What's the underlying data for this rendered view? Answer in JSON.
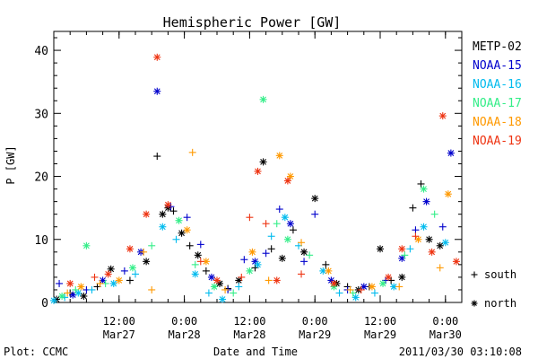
{
  "chart_data": {
    "type": "scatter",
    "title": "Hemispheric Power [GW]",
    "ylabel": "P [GW]",
    "xlabel": "Date and Time",
    "ylim": [
      0,
      43
    ],
    "yticks": [
      0,
      10,
      20,
      30,
      40
    ],
    "xlim": [
      "2011-03-27 00:00",
      "2011-03-30 03:00"
    ],
    "xticks": [
      {
        "t": "2011-03-27 12:00",
        "time": "12:00",
        "date": "Mar27"
      },
      {
        "t": "2011-03-28 00:00",
        "time": "0:00",
        "date": "Mar28"
      },
      {
        "t": "2011-03-28 12:00",
        "time": "12:00",
        "date": "Mar28"
      },
      {
        "t": "2011-03-29 00:00",
        "time": "0:00",
        "date": "Mar29"
      },
      {
        "t": "2011-03-29 12:00",
        "time": "12:00",
        "date": "Mar29"
      },
      {
        "t": "2011-03-30 00:00",
        "time": "0:00",
        "date": "Mar30"
      }
    ],
    "marker_legend": [
      {
        "symbol": "+",
        "label": "south"
      },
      {
        "symbol": "*",
        "label": "north"
      }
    ],
    "series": [
      {
        "name": "METP-02",
        "color": "#000000",
        "points": [
          {
            "t": "2011-03-27 00:30",
            "y": 0.5,
            "m": "*"
          },
          {
            "t": "2011-03-27 03:00",
            "y": 1.5,
            "m": "+"
          },
          {
            "t": "2011-03-27 05:30",
            "y": 1.0,
            "m": "*"
          },
          {
            "t": "2011-03-27 08:00",
            "y": 2.5,
            "m": "+"
          },
          {
            "t": "2011-03-27 10:30",
            "y": 5.3,
            "m": "*"
          },
          {
            "t": "2011-03-27 14:00",
            "y": 3.5,
            "m": "+"
          },
          {
            "t": "2011-03-27 17:00",
            "y": 6.5,
            "m": "*"
          },
          {
            "t": "2011-03-27 19:00",
            "y": 23.2,
            "m": "+"
          },
          {
            "t": "2011-03-27 20:00",
            "y": 14.0,
            "m": "*"
          },
          {
            "t": "2011-03-27 21:00",
            "y": 15.0,
            "m": "*"
          },
          {
            "t": "2011-03-27 22:00",
            "y": 14.5,
            "m": "+"
          },
          {
            "t": "2011-03-27 23:30",
            "y": 11.0,
            "m": "*"
          },
          {
            "t": "2011-03-28 01:00",
            "y": 9.0,
            "m": "+"
          },
          {
            "t": "2011-03-28 02:30",
            "y": 7.5,
            "m": "*"
          },
          {
            "t": "2011-03-28 04:00",
            "y": 5.0,
            "m": "+"
          },
          {
            "t": "2011-03-28 06:30",
            "y": 3.0,
            "m": "*"
          },
          {
            "t": "2011-03-28 08:00",
            "y": 2.2,
            "m": "+"
          },
          {
            "t": "2011-03-28 10:00",
            "y": 3.5,
            "m": "*"
          },
          {
            "t": "2011-03-28 13:00",
            "y": 5.5,
            "m": "+"
          },
          {
            "t": "2011-03-28 14:30",
            "y": 22.3,
            "m": "*"
          },
          {
            "t": "2011-03-28 16:00",
            "y": 8.5,
            "m": "+"
          },
          {
            "t": "2011-03-28 18:00",
            "y": 7.0,
            "m": "*"
          },
          {
            "t": "2011-03-28 20:00",
            "y": 11.5,
            "m": "+"
          },
          {
            "t": "2011-03-28 22:00",
            "y": 8.0,
            "m": "*"
          },
          {
            "t": "2011-03-29 00:00",
            "y": 16.5,
            "m": "*"
          },
          {
            "t": "2011-03-29 02:00",
            "y": 6.0,
            "m": "+"
          },
          {
            "t": "2011-03-29 04:00",
            "y": 3.0,
            "m": "*"
          },
          {
            "t": "2011-03-29 06:00",
            "y": 2.5,
            "m": "+"
          },
          {
            "t": "2011-03-29 08:00",
            "y": 2.0,
            "m": "*"
          },
          {
            "t": "2011-03-29 10:00",
            "y": 2.5,
            "m": "+"
          },
          {
            "t": "2011-03-29 12:00",
            "y": 8.5,
            "m": "*"
          },
          {
            "t": "2011-03-29 14:00",
            "y": 3.5,
            "m": "+"
          },
          {
            "t": "2011-03-29 16:00",
            "y": 4.0,
            "m": "*"
          },
          {
            "t": "2011-03-29 18:00",
            "y": 15.0,
            "m": "+"
          },
          {
            "t": "2011-03-29 19:30",
            "y": 18.8,
            "m": "+"
          },
          {
            "t": "2011-03-29 21:00",
            "y": 10.0,
            "m": "*"
          },
          {
            "t": "2011-03-29 23:00",
            "y": 9.0,
            "m": "*"
          }
        ]
      },
      {
        "name": "NOAA-15",
        "color": "#0000cc",
        "points": [
          {
            "t": "2011-03-27 01:00",
            "y": 3.0,
            "m": "+"
          },
          {
            "t": "2011-03-27 03:30",
            "y": 1.2,
            "m": "*"
          },
          {
            "t": "2011-03-27 06:00",
            "y": 2.0,
            "m": "+"
          },
          {
            "t": "2011-03-27 09:00",
            "y": 3.5,
            "m": "*"
          },
          {
            "t": "2011-03-27 13:00",
            "y": 5.0,
            "m": "+"
          },
          {
            "t": "2011-03-27 16:00",
            "y": 8.0,
            "m": "*"
          },
          {
            "t": "2011-03-27 19:00",
            "y": 33.5,
            "m": "*"
          },
          {
            "t": "2011-03-27 21:30",
            "y": 15.2,
            "m": "+"
          },
          {
            "t": "2011-03-28 00:30",
            "y": 13.5,
            "m": "+"
          },
          {
            "t": "2011-03-28 03:00",
            "y": 9.2,
            "m": "+"
          },
          {
            "t": "2011-03-28 05:00",
            "y": 4.0,
            "m": "*"
          },
          {
            "t": "2011-03-28 08:00",
            "y": 2.0,
            "m": "+"
          },
          {
            "t": "2011-03-28 11:00",
            "y": 6.8,
            "m": "+"
          },
          {
            "t": "2011-03-28 13:00",
            "y": 6.5,
            "m": "*"
          },
          {
            "t": "2011-03-28 15:00",
            "y": 7.8,
            "m": "+"
          },
          {
            "t": "2011-03-28 17:30",
            "y": 14.8,
            "m": "+"
          },
          {
            "t": "2011-03-28 19:30",
            "y": 12.5,
            "m": "*"
          },
          {
            "t": "2011-03-28 22:00",
            "y": 6.5,
            "m": "+"
          },
          {
            "t": "2011-03-29 00:00",
            "y": 14.0,
            "m": "+"
          },
          {
            "t": "2011-03-29 03:00",
            "y": 3.5,
            "m": "*"
          },
          {
            "t": "2011-03-29 06:00",
            "y": 2.0,
            "m": "+"
          },
          {
            "t": "2011-03-29 09:00",
            "y": 2.5,
            "m": "*"
          },
          {
            "t": "2011-03-29 13:00",
            "y": 3.5,
            "m": "+"
          },
          {
            "t": "2011-03-29 16:00",
            "y": 7.0,
            "m": "*"
          },
          {
            "t": "2011-03-29 18:30",
            "y": 11.5,
            "m": "+"
          },
          {
            "t": "2011-03-29 20:30",
            "y": 16.0,
            "m": "*"
          },
          {
            "t": "2011-03-29 23:30",
            "y": 12.0,
            "m": "+"
          },
          {
            "t": "2011-03-30 01:00",
            "y": 23.7,
            "m": "*"
          }
        ]
      },
      {
        "name": "NOAA-16",
        "color": "#00bbee",
        "points": [
          {
            "t": "2011-03-27 00:00",
            "y": 0.3,
            "m": "*"
          },
          {
            "t": "2011-03-27 02:00",
            "y": 0.8,
            "m": "+"
          },
          {
            "t": "2011-03-27 04:30",
            "y": 1.5,
            "m": "*"
          },
          {
            "t": "2011-03-27 07:00",
            "y": 2.0,
            "m": "+"
          },
          {
            "t": "2011-03-27 11:00",
            "y": 3.0,
            "m": "*"
          },
          {
            "t": "2011-03-27 15:00",
            "y": 4.5,
            "m": "+"
          },
          {
            "t": "2011-03-27 20:00",
            "y": 12.0,
            "m": "*"
          },
          {
            "t": "2011-03-27 22:30",
            "y": 10.0,
            "m": "+"
          },
          {
            "t": "2011-03-28 02:00",
            "y": 4.5,
            "m": "*"
          },
          {
            "t": "2011-03-28 04:30",
            "y": 1.5,
            "m": "+"
          },
          {
            "t": "2011-03-28 07:00",
            "y": 0.5,
            "m": "*"
          },
          {
            "t": "2011-03-28 10:00",
            "y": 2.5,
            "m": "+"
          },
          {
            "t": "2011-03-28 13:30",
            "y": 6.0,
            "m": "*"
          },
          {
            "t": "2011-03-28 16:00",
            "y": 10.5,
            "m": "+"
          },
          {
            "t": "2011-03-28 18:30",
            "y": 13.5,
            "m": "*"
          },
          {
            "t": "2011-03-28 21:00",
            "y": 9.0,
            "m": "+"
          },
          {
            "t": "2011-03-29 01:30",
            "y": 5.0,
            "m": "*"
          },
          {
            "t": "2011-03-29 04:30",
            "y": 1.5,
            "m": "+"
          },
          {
            "t": "2011-03-29 07:30",
            "y": 0.8,
            "m": "*"
          },
          {
            "t": "2011-03-29 11:00",
            "y": 1.5,
            "m": "+"
          },
          {
            "t": "2011-03-29 14:30",
            "y": 2.5,
            "m": "*"
          },
          {
            "t": "2011-03-29 17:30",
            "y": 8.5,
            "m": "+"
          },
          {
            "t": "2011-03-29 20:00",
            "y": 12.0,
            "m": "*"
          },
          {
            "t": "2011-03-30 00:00",
            "y": 9.5,
            "m": "*"
          }
        ]
      },
      {
        "name": "NOAA-17",
        "color": "#33ee88",
        "points": [
          {
            "t": "2011-03-27 01:30",
            "y": 1.0,
            "m": "*"
          },
          {
            "t": "2011-03-27 04:00",
            "y": 2.0,
            "m": "+"
          },
          {
            "t": "2011-03-27 06:00",
            "y": 9.0,
            "m": "*"
          },
          {
            "t": "2011-03-27 09:30",
            "y": 3.0,
            "m": "+"
          },
          {
            "t": "2011-03-27 14:30",
            "y": 5.5,
            "m": "*"
          },
          {
            "t": "2011-03-27 18:00",
            "y": 9.0,
            "m": "+"
          },
          {
            "t": "2011-03-27 23:00",
            "y": 13.0,
            "m": "*"
          },
          {
            "t": "2011-03-28 02:00",
            "y": 6.0,
            "m": "+"
          },
          {
            "t": "2011-03-28 05:30",
            "y": 2.5,
            "m": "*"
          },
          {
            "t": "2011-03-28 09:00",
            "y": 1.5,
            "m": "+"
          },
          {
            "t": "2011-03-28 12:00",
            "y": 5.0,
            "m": "*"
          },
          {
            "t": "2011-03-28 14:30",
            "y": 32.2,
            "m": "*"
          },
          {
            "t": "2011-03-28 17:00",
            "y": 12.5,
            "m": "+"
          },
          {
            "t": "2011-03-28 19:00",
            "y": 10.0,
            "m": "*"
          },
          {
            "t": "2011-03-28 23:00",
            "y": 7.5,
            "m": "+"
          },
          {
            "t": "2011-03-29 03:30",
            "y": 2.5,
            "m": "*"
          },
          {
            "t": "2011-03-29 07:00",
            "y": 1.5,
            "m": "+"
          },
          {
            "t": "2011-03-29 12:30",
            "y": 3.0,
            "m": "*"
          },
          {
            "t": "2011-03-29 16:30",
            "y": 7.5,
            "m": "+"
          },
          {
            "t": "2011-03-29 20:00",
            "y": 18.0,
            "m": "*"
          },
          {
            "t": "2011-03-29 22:00",
            "y": 14.0,
            "m": "+"
          }
        ]
      },
      {
        "name": "NOAA-18",
        "color": "#ff9900",
        "points": [
          {
            "t": "2011-03-27 02:30",
            "y": 1.5,
            "m": "+"
          },
          {
            "t": "2011-03-27 05:00",
            "y": 2.5,
            "m": "*"
          },
          {
            "t": "2011-03-27 08:30",
            "y": 3.0,
            "m": "+"
          },
          {
            "t": "2011-03-27 12:00",
            "y": 3.5,
            "m": "*"
          },
          {
            "t": "2011-03-27 16:30",
            "y": 8.0,
            "m": "+"
          },
          {
            "t": "2011-03-27 18:00",
            "y": 2.0,
            "m": "+"
          },
          {
            "t": "2011-03-28 00:30",
            "y": 11.5,
            "m": "*"
          },
          {
            "t": "2011-03-28 01:30",
            "y": 23.8,
            "m": "+"
          },
          {
            "t": "2011-03-28 04:00",
            "y": 6.5,
            "m": "*"
          },
          {
            "t": "2011-03-28 07:30",
            "y": 2.0,
            "m": "+"
          },
          {
            "t": "2011-03-28 12:30",
            "y": 8.0,
            "m": "*"
          },
          {
            "t": "2011-03-28 15:30",
            "y": 3.5,
            "m": "+"
          },
          {
            "t": "2011-03-28 17:30",
            "y": 23.3,
            "m": "*"
          },
          {
            "t": "2011-03-28 19:30",
            "y": 20.0,
            "m": "*"
          },
          {
            "t": "2011-03-28 21:30",
            "y": 9.5,
            "m": "+"
          },
          {
            "t": "2011-03-29 02:30",
            "y": 5.0,
            "m": "*"
          },
          {
            "t": "2011-03-29 06:30",
            "y": 2.0,
            "m": "+"
          },
          {
            "t": "2011-03-29 10:30",
            "y": 2.5,
            "m": "*"
          },
          {
            "t": "2011-03-29 15:30",
            "y": 2.5,
            "m": "+"
          },
          {
            "t": "2011-03-29 19:00",
            "y": 10.0,
            "m": "*"
          },
          {
            "t": "2011-03-29 23:00",
            "y": 5.5,
            "m": "+"
          },
          {
            "t": "2011-03-30 00:30",
            "y": 17.2,
            "m": "*"
          }
        ]
      },
      {
        "name": "NOAA-19",
        "color": "#ee3311",
        "points": [
          {
            "t": "2011-03-27 03:00",
            "y": 3.0,
            "m": "*"
          },
          {
            "t": "2011-03-27 07:30",
            "y": 4.0,
            "m": "+"
          },
          {
            "t": "2011-03-27 10:00",
            "y": 4.5,
            "m": "*"
          },
          {
            "t": "2011-03-27 14:00",
            "y": 8.5,
            "m": "*"
          },
          {
            "t": "2011-03-27 17:00",
            "y": 14.0,
            "m": "*"
          },
          {
            "t": "2011-03-27 19:00",
            "y": 38.9,
            "m": "*"
          },
          {
            "t": "2011-03-27 21:00",
            "y": 15.5,
            "m": "*"
          },
          {
            "t": "2011-03-28 03:00",
            "y": 6.5,
            "m": "+"
          },
          {
            "t": "2011-03-28 06:00",
            "y": 3.5,
            "m": "*"
          },
          {
            "t": "2011-03-28 10:30",
            "y": 4.0,
            "m": "+"
          },
          {
            "t": "2011-03-28 12:00",
            "y": 13.5,
            "m": "+"
          },
          {
            "t": "2011-03-28 13:30",
            "y": 20.8,
            "m": "*"
          },
          {
            "t": "2011-03-28 15:00",
            "y": 12.5,
            "m": "+"
          },
          {
            "t": "2011-03-28 17:00",
            "y": 3.5,
            "m": "*"
          },
          {
            "t": "2011-03-28 19:00",
            "y": 19.3,
            "m": "*"
          },
          {
            "t": "2011-03-28 21:30",
            "y": 4.5,
            "m": "+"
          },
          {
            "t": "2011-03-29 03:30",
            "y": 3.0,
            "m": "*"
          },
          {
            "t": "2011-03-29 08:30",
            "y": 2.0,
            "m": "+"
          },
          {
            "t": "2011-03-29 13:30",
            "y": 4.0,
            "m": "*"
          },
          {
            "t": "2011-03-29 16:00",
            "y": 8.5,
            "m": "*"
          },
          {
            "t": "2011-03-29 18:30",
            "y": 10.5,
            "m": "+"
          },
          {
            "t": "2011-03-29 21:30",
            "y": 8.0,
            "m": "*"
          },
          {
            "t": "2011-03-29 23:30",
            "y": 29.6,
            "m": "*"
          },
          {
            "t": "2011-03-30 02:00",
            "y": 6.5,
            "m": "*"
          }
        ]
      }
    ]
  },
  "footer": {
    "left": "Plot: CCMC",
    "center": "Date and Time",
    "right": "2011/03/30 03:10:08"
  }
}
